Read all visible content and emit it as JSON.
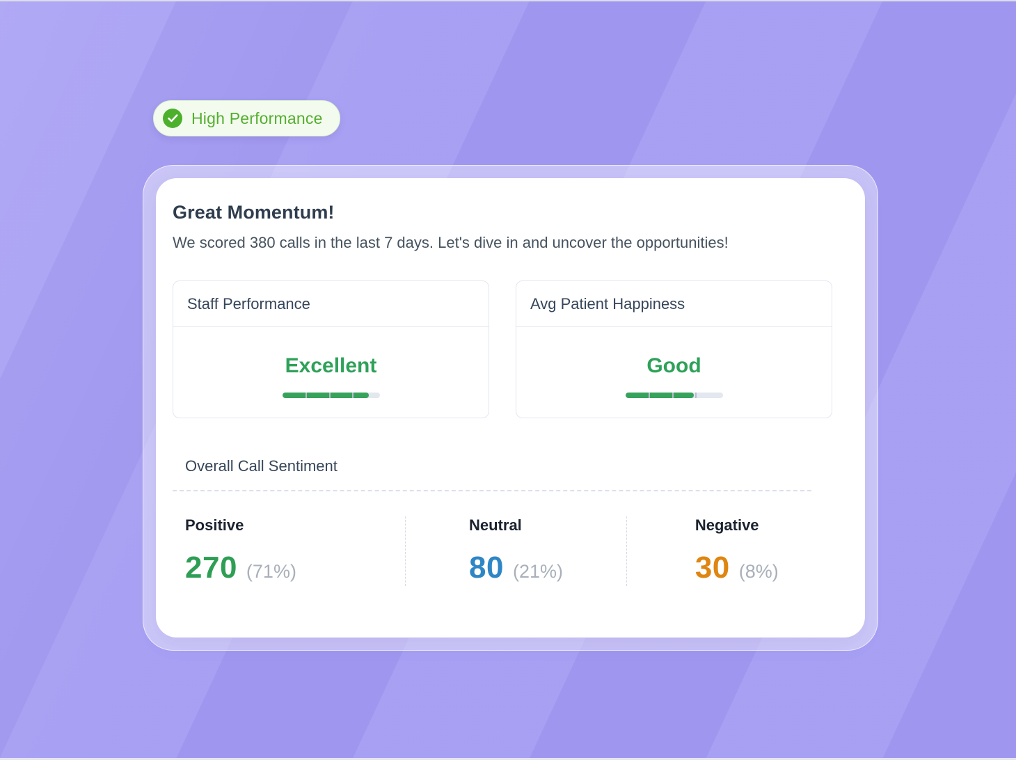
{
  "badge": {
    "label": "High Performance",
    "icon": "check-circle-icon",
    "text_color": "#55ae2f",
    "circle_color": "#4db02d"
  },
  "card": {
    "title": "Great Momentum!",
    "subtitle": "We scored 380 calls in the last 7 days. Let's dive in and uncover the opportunities!",
    "metrics": [
      {
        "title": "Staff Performance",
        "value": "Excellent",
        "fill_percent": "89",
        "fill_color": "#37a25b"
      },
      {
        "title": "Avg Patient Happiness",
        "value": "Good",
        "fill_percent": "70",
        "fill_color": "#37a25b"
      }
    ],
    "sentiment": {
      "title": "Overall Call Sentiment",
      "items": [
        {
          "label": "Positive",
          "count": "270",
          "percent": "(71%)",
          "color": "#2f9e55"
        },
        {
          "label": "Neutral",
          "count": "80",
          "percent": "(21%)",
          "color": "#2e86c5"
        },
        {
          "label": "Negative",
          "count": "30",
          "percent": "(8%)",
          "color": "#df8512"
        }
      ]
    }
  },
  "colors": {
    "background": "#a29af2",
    "frame": "rgba(255,255,255,0.42)",
    "card": "#ffffff",
    "value_green": "#2ea158",
    "muted_gray": "#a9b0ba"
  }
}
